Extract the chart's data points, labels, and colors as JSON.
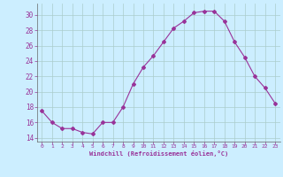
{
  "x": [
    0,
    1,
    2,
    3,
    4,
    5,
    6,
    7,
    8,
    9,
    10,
    11,
    12,
    13,
    14,
    15,
    16,
    17,
    18,
    19,
    20,
    21,
    22,
    23
  ],
  "y": [
    17.5,
    16.0,
    15.2,
    15.2,
    14.7,
    14.5,
    16.0,
    16.0,
    18.0,
    21.0,
    23.2,
    24.7,
    26.5,
    28.3,
    29.2,
    30.3,
    30.5,
    30.5,
    29.2,
    26.5,
    24.5,
    22.0,
    20.5,
    18.5
  ],
  "line_color": "#993399",
  "marker": "D",
  "marker_size": 2,
  "background_color": "#cceeff",
  "grid_color": "#aacccc",
  "xlabel": "Windchill (Refroidissement éolien,°C)",
  "xlabel_color": "#993399",
  "tick_color": "#993399",
  "xlim": [
    -0.5,
    23.5
  ],
  "ylim": [
    13.5,
    31.5
  ],
  "yticks": [
    14,
    16,
    18,
    20,
    22,
    24,
    26,
    28,
    30
  ],
  "xticks": [
    0,
    1,
    2,
    3,
    4,
    5,
    6,
    7,
    8,
    9,
    10,
    11,
    12,
    13,
    14,
    15,
    16,
    17,
    18,
    19,
    20,
    21,
    22,
    23
  ]
}
